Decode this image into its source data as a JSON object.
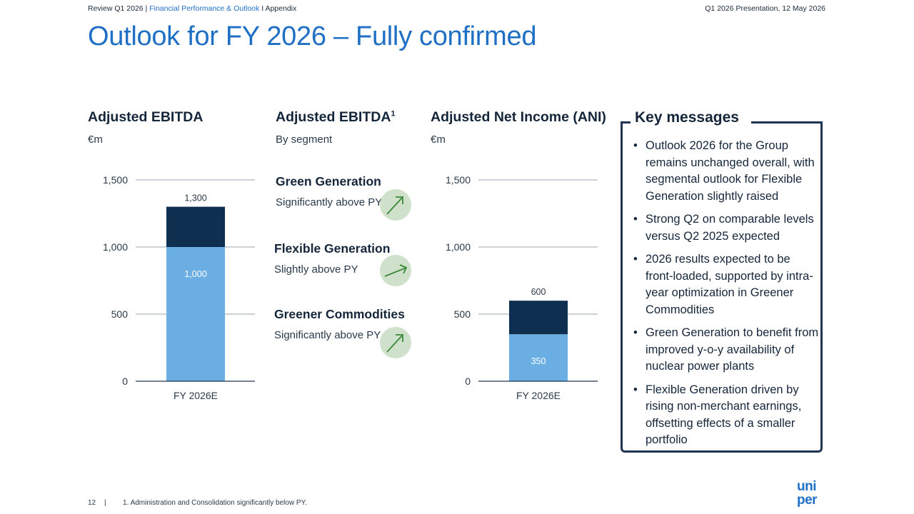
{
  "header": {
    "left_prefix": "Review Q1 2026 | ",
    "left_highlight": "Financial Performance & Outlook",
    "left_suffix": " I Appendix",
    "right": "Q1 2026 Presentation, 12 May 2026"
  },
  "title": "Outlook for FY 2026 – Fully confirmed",
  "ebitda": {
    "title": "Adjusted EBITDA",
    "unit": "€m"
  },
  "segments": {
    "title": "Adjusted EBITDA",
    "footnote_mark": "1",
    "subtitle": "By segment",
    "items": [
      {
        "name": "Green Generation",
        "desc": "Significantly above PY"
      },
      {
        "name": "Flexible Generation",
        "desc": "Slightly above PY"
      },
      {
        "name": "Greener Commodities",
        "desc": "Significantly above PY"
      }
    ]
  },
  "ani": {
    "title": "Adjusted Net Income (ANI)",
    "unit": "€m"
  },
  "chart_data": [
    {
      "type": "bar",
      "title": "Adjusted EBITDA",
      "ylabel": "€m",
      "categories": [
        "FY 2026E"
      ],
      "ylim": [
        0,
        1500
      ],
      "yticks": [
        0,
        500,
        1000,
        1500
      ],
      "ytick_labels": [
        "0",
        "500",
        "1,000",
        "1,500"
      ],
      "stacked": true,
      "grid": true,
      "series": [
        {
          "values": [
            1000
          ],
          "labels": [
            "1,000"
          ],
          "color": "#6aaee3"
        },
        {
          "values": [
            300
          ],
          "color": "#0e2f4f"
        }
      ],
      "total_labels": [
        "1,300"
      ]
    },
    {
      "type": "bar",
      "title": "Adjusted Net Income (ANI)",
      "ylabel": "€m",
      "categories": [
        "FY 2026E"
      ],
      "ylim": [
        0,
        1500
      ],
      "yticks": [
        0,
        500,
        1000,
        1500
      ],
      "ytick_labels": [
        "0",
        "500",
        "1,000",
        "1,500"
      ],
      "stacked": true,
      "grid": true,
      "series": [
        {
          "values": [
            350
          ],
          "labels": [
            "350"
          ],
          "color": "#6aaee3"
        },
        {
          "values": [
            250
          ],
          "color": "#0e2f4f"
        }
      ],
      "total_labels": [
        "600"
      ]
    }
  ],
  "key_messages": {
    "title": "Key messages",
    "items": [
      "Outlook 2026 for the Group remains unchanged overall, with segmental outlook for Flexible Generation slightly raised",
      "Strong Q2 on comparable levels versus Q2 2025 expected",
      "2026 results expected to be front-loaded, supported by intra-year optimization in Greener Commodities",
      "Green Generation to benefit from improved y-o-y availability of nuclear power plants",
      "Flexible Generation driven by rising non-merchant earnings, offsetting effects of a smaller portfolio"
    ]
  },
  "footer": {
    "page": "12",
    "separator": "|",
    "footnote": "1. Administration and Consolidation significantly below PY."
  },
  "logo": {
    "line1": "uni",
    "line2": "per",
    "color": "#1f6fc5"
  },
  "colors": {
    "accent": "#1f6fc5",
    "dark": "#0e2f4f",
    "light": "#6aaee3",
    "arrow_bg": "#cfe1cb",
    "arrow": "#3a8a3a"
  },
  "icons": {
    "trend": "arrow-up-right-icon"
  }
}
